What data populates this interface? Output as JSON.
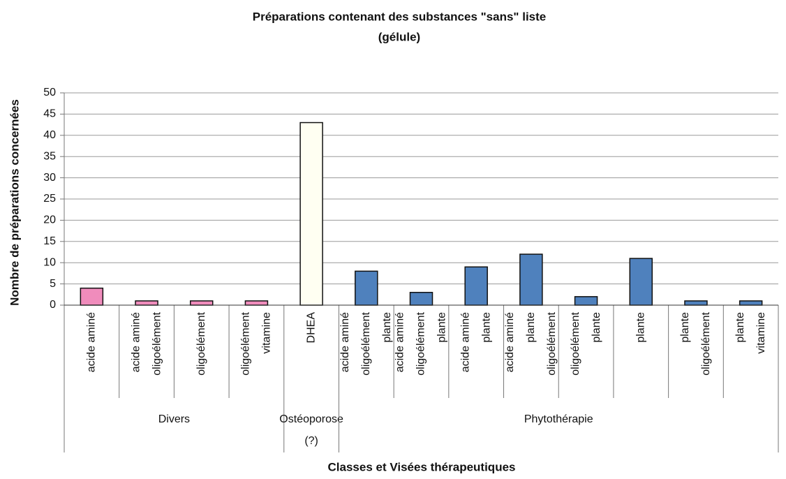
{
  "chart_data": {
    "type": "bar",
    "title": [
      "Préparations contenant des substances \"sans\" liste",
      "(gélule)"
    ],
    "y_label": "Nombre de préparations concernées",
    "x_label": "Classes et Visées thérapeutiques",
    "ylim": [
      0,
      50
    ],
    "yticks": [
      0,
      5,
      10,
      15,
      20,
      25,
      30,
      35,
      40,
      45,
      50
    ],
    "grid": true,
    "groups": [
      {
        "label": [
          "Divers"
        ],
        "color": "#f08cbc",
        "categories": [
          [
            "acide aminé"
          ],
          [
            "acide aminé",
            "oligoélément"
          ],
          [
            "oligoélément"
          ],
          [
            "oligoélément",
            "vitamine"
          ]
        ],
        "values": [
          4,
          1,
          1,
          1
        ]
      },
      {
        "label": [
          "Ostéoporose",
          "(?)"
        ],
        "color": "#fffff2",
        "categories": [
          [
            "DHEA"
          ]
        ],
        "values": [
          43
        ]
      },
      {
        "label": [
          "Phytothérapie"
        ],
        "color": "#4f81bd",
        "categories": [
          [
            "acide aminé",
            "oligoélément",
            "plante"
          ],
          [
            "acide aminé",
            "oligoélément",
            "plante"
          ],
          [
            "acide aminé",
            "plante"
          ],
          [
            "acide aminé",
            "plante",
            "oligoélément"
          ],
          [
            "oligoélément",
            "plante"
          ],
          [
            "plante"
          ],
          [
            "plante",
            "oligoélément"
          ],
          [
            "plante",
            "vitamine"
          ]
        ],
        "values": [
          8,
          3,
          9,
          12,
          2,
          11,
          1,
          1
        ]
      }
    ]
  }
}
